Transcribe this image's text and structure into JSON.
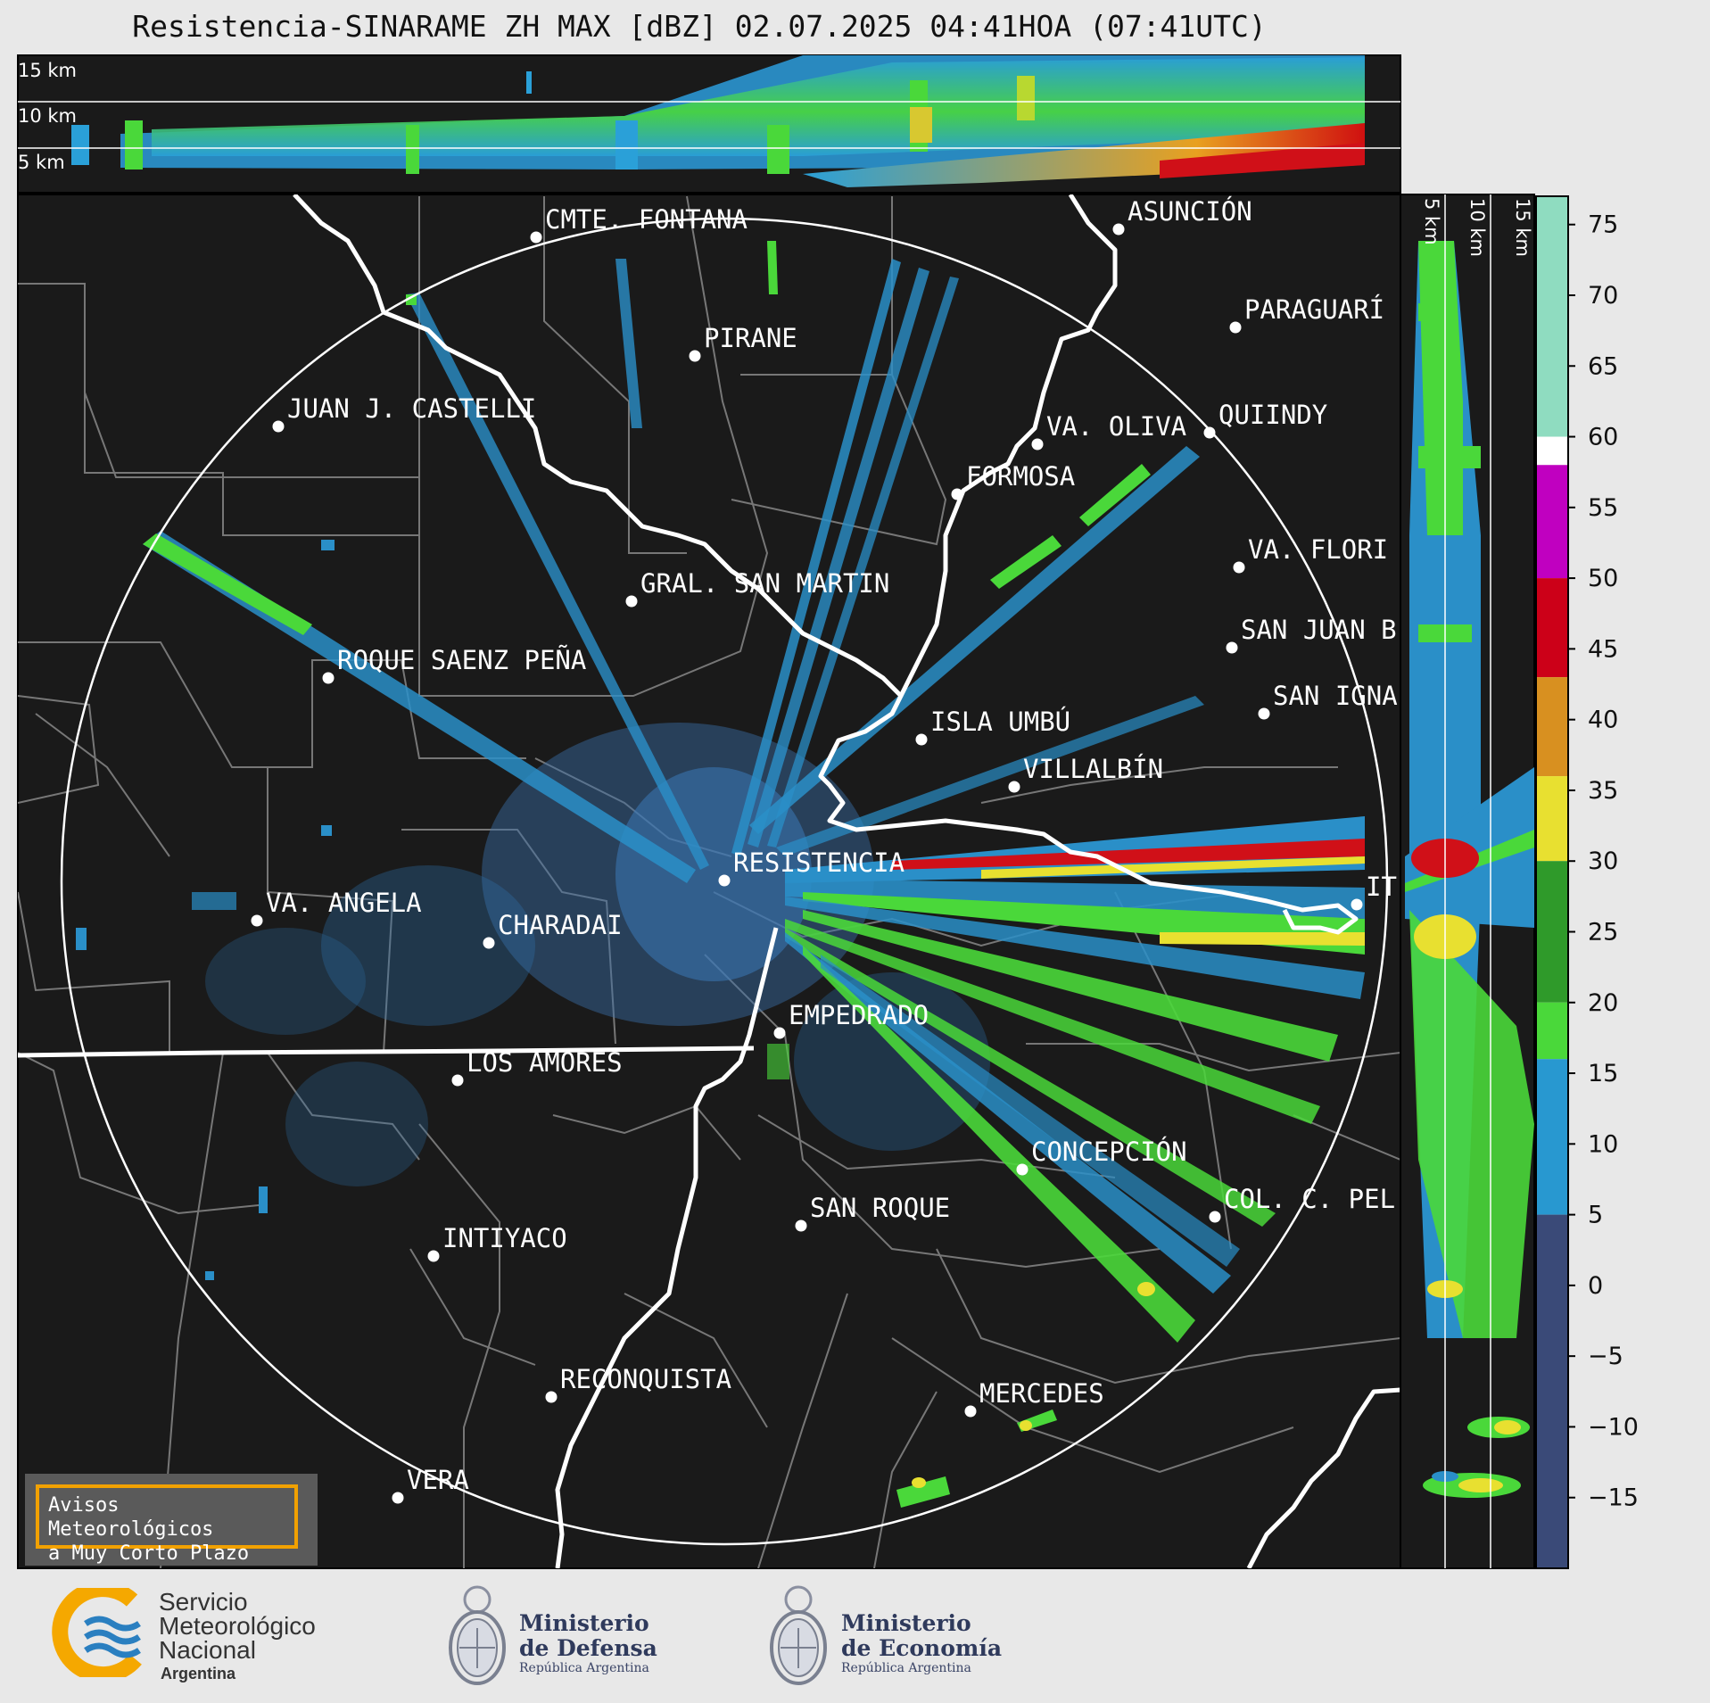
{
  "title": "Resistencia-SINARAME ZH MAX [dBZ] 02.07.2025 04:41HOA (07:41UTC)",
  "top_panel": {
    "altitude_labels": [
      "15 km",
      "10 km",
      "5 km"
    ]
  },
  "side_panel": {
    "altitude_labels": [
      "5 km",
      "10 km",
      "15 km"
    ]
  },
  "colorbar": {
    "unit": "dBZ",
    "ticks": [
      "75",
      "70",
      "65",
      "60",
      "55",
      "50",
      "45",
      "40",
      "35",
      "30",
      "25",
      "20",
      "15",
      "10",
      "5",
      "0",
      "−5",
      "−10",
      "−15"
    ],
    "ticks_values": [
      75,
      70,
      65,
      60,
      55,
      50,
      45,
      40,
      35,
      30,
      25,
      20,
      15,
      10,
      5,
      0,
      -5,
      -10,
      -15
    ],
    "range": [
      -20,
      77
    ],
    "segments": [
      {
        "from": 60,
        "to": 77,
        "color": "#8fdcc0"
      },
      {
        "from": 58,
        "to": 60,
        "color": "#ffffff"
      },
      {
        "from": 50,
        "to": 58,
        "color": "#c000c0"
      },
      {
        "from": 43,
        "to": 50,
        "color": "#cc0018"
      },
      {
        "from": 36,
        "to": 43,
        "color": "#d89020"
      },
      {
        "from": 30,
        "to": 36,
        "color": "#e8e030"
      },
      {
        "from": 20,
        "to": 30,
        "color": "#2f9a2a"
      },
      {
        "from": 16,
        "to": 20,
        "color": "#4ad83a"
      },
      {
        "from": 5,
        "to": 16,
        "color": "#2898d0"
      },
      {
        "from": -20,
        "to": 5,
        "color": "#3a4a78"
      }
    ]
  },
  "cities": [
    {
      "name": "CMTE. FONTANA"
    },
    {
      "name": "ASUNCIÓN"
    },
    {
      "name": "PIRANE"
    },
    {
      "name": "PARAGUARÍ"
    },
    {
      "name": "JUAN J. CASTELLI"
    },
    {
      "name": "VA. OLIVA"
    },
    {
      "name": "QUIINDY"
    },
    {
      "name": "FORMOSA"
    },
    {
      "name": "VA. FLORI"
    },
    {
      "name": "GRAL. SAN MARTIN"
    },
    {
      "name": "SAN JUAN B"
    },
    {
      "name": "ROQUE SAENZ PEÑA"
    },
    {
      "name": "SAN IGNA"
    },
    {
      "name": "ISLA UMBÚ"
    },
    {
      "name": "VILLALBÍN"
    },
    {
      "name": "RESISTENCIA"
    },
    {
      "name": "VA. ANGELA"
    },
    {
      "name": "CHARADAI"
    },
    {
      "name": "IT"
    },
    {
      "name": "EMPEDRADO"
    },
    {
      "name": "LOS AMORES"
    },
    {
      "name": "CONCEPCIÓN"
    },
    {
      "name": "COL. C. PEL"
    },
    {
      "name": "SAN ROQUE"
    },
    {
      "name": "INTIYACO"
    },
    {
      "name": "RECONQUISTA"
    },
    {
      "name": "MERCEDES"
    },
    {
      "name": "VERA"
    }
  ],
  "notice": {
    "line1": "Avisos Meteorológicos",
    "line2": "a Muy Corto Plazo"
  },
  "logos": {
    "smn": {
      "line1": "Servicio",
      "line2": "Meteorológico",
      "line3": "Nacional",
      "line4": "Argentina"
    },
    "defensa": {
      "line1": "Ministerio",
      "line2": "de Defensa",
      "line3": "República Argentina"
    },
    "economia": {
      "line1": "Ministerio",
      "line2": "de Economía",
      "line3": "República Argentina"
    }
  }
}
